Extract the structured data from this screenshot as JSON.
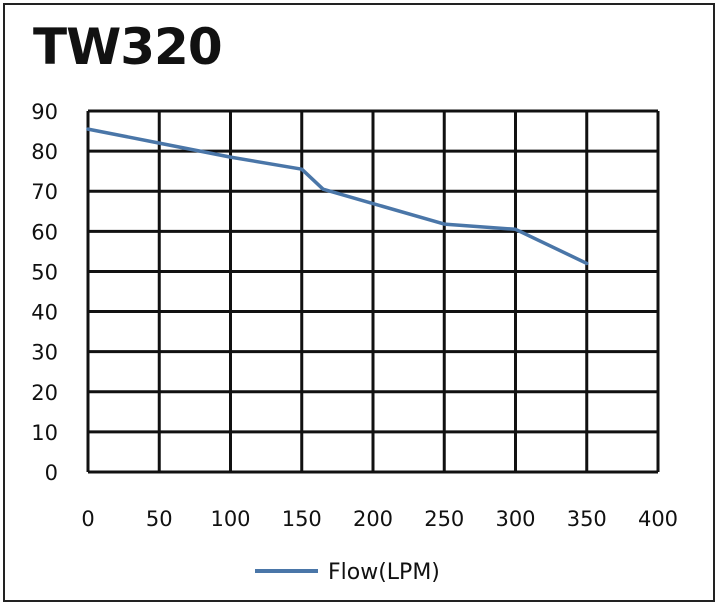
{
  "chart_data": {
    "type": "line",
    "title": "TW320",
    "xlabel": "",
    "ylabel": "",
    "xlim": [
      0,
      400
    ],
    "ylim": [
      0,
      90
    ],
    "x_ticks": [
      0,
      50,
      100,
      150,
      200,
      250,
      300,
      350,
      400
    ],
    "y_ticks": [
      0,
      10,
      20,
      30,
      40,
      50,
      60,
      70,
      80,
      90
    ],
    "grid": true,
    "legend_position": "bottom-center",
    "series": [
      {
        "name": "Flow(LPM)",
        "color": "#4a76a8",
        "x": [
          0,
          50,
          100,
          150,
          165,
          250,
          300,
          350
        ],
        "y": [
          85.5,
          82,
          78.5,
          75.5,
          70.5,
          61.8,
          60.5,
          52
        ]
      }
    ]
  }
}
